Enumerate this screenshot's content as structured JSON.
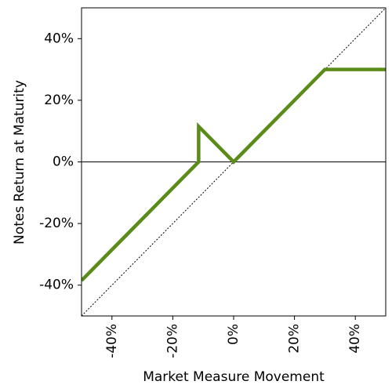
{
  "chart_data": {
    "type": "line",
    "x_label": "Market Measure Movement",
    "y_label": "Notes Return at Maturity",
    "x": [
      -50,
      -11.5,
      -11.5,
      0,
      30,
      50
    ],
    "series": [
      {
        "color": "#5b8c1a",
        "values": [
          -38.5,
          0,
          11.5,
          0,
          30,
          30
        ]
      }
    ],
    "xlim": [
      -50,
      50
    ],
    "ylim": [
      -50,
      50
    ],
    "xticks": [
      {
        "value": -40,
        "label": "-40%"
      },
      {
        "value": -20,
        "label": "-20%"
      },
      {
        "value": 0,
        "label": "0%"
      },
      {
        "value": 20,
        "label": "20%"
      },
      {
        "value": 40,
        "label": "40%"
      }
    ],
    "yticks": [
      {
        "value": -40,
        "label": "-40%"
      },
      {
        "value": -20,
        "label": "-20%"
      },
      {
        "value": 0,
        "label": "0%"
      },
      {
        "value": 20,
        "label": "20%"
      },
      {
        "value": 40,
        "label": "40%"
      }
    ]
  }
}
